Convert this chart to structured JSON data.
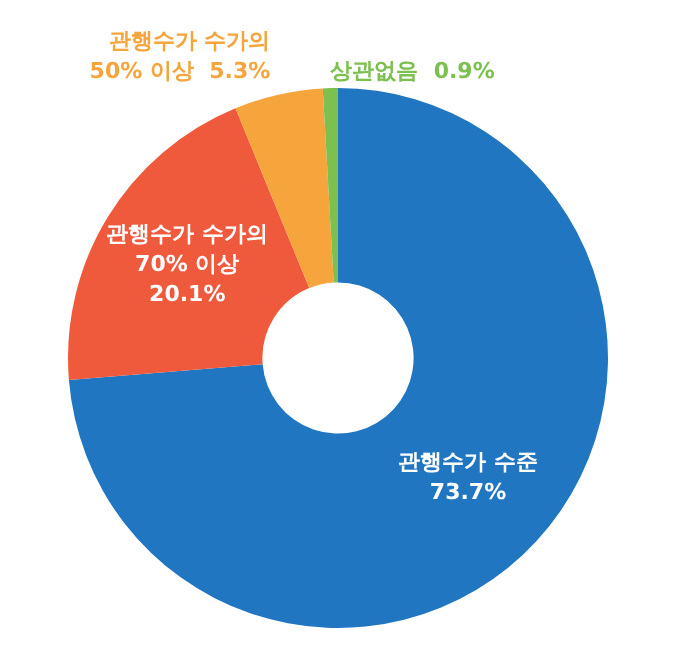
{
  "chart_data": {
    "type": "donut",
    "categories": [
      "관행수가 수준",
      "관행수가 수가의\n70% 이상",
      "관행수가 수가의\n50% 이상",
      "상관없음"
    ],
    "values": [
      73.7,
      20.1,
      5.3,
      0.9
    ],
    "colors": [
      "#2176c1",
      "#ef5a3c",
      "#f5a53b",
      "#7cc04f"
    ],
    "value_labels": [
      "73.7%",
      "20.1%",
      "5.3%",
      "0.9%"
    ],
    "legend": false
  }
}
